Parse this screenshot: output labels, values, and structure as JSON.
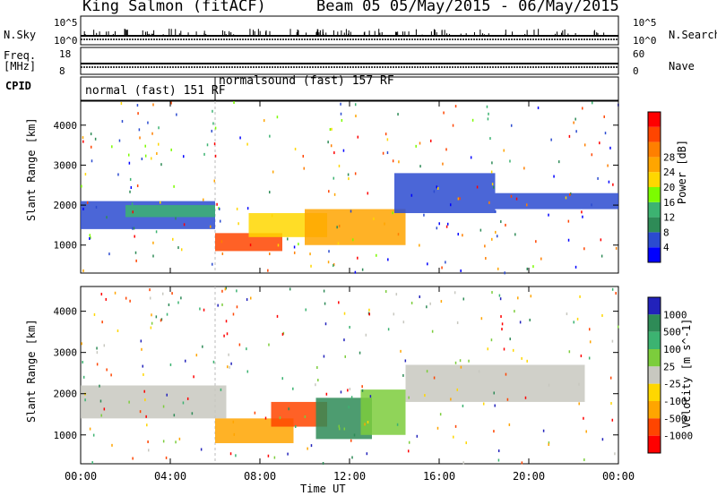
{
  "header": {
    "station": "King Salmon (fitACF)",
    "beam_dates": "Beam 05 05/May/2015 - 06/May/2015"
  },
  "strips": {
    "nsky_label": "N.Sky",
    "nsearch_label": "N.Search",
    "freq_label_1": "Freq.",
    "freq_label_2": "[MHz]",
    "nave_label": "Nave",
    "cpid_label": "CPID",
    "nsky_ticks": [
      "10^5",
      "10^0"
    ],
    "nsearch_ticks": [
      "10^5",
      "10^0"
    ],
    "freq_ticks": [
      "18",
      "8"
    ],
    "nave_ticks": [
      "60",
      "0"
    ],
    "cpid_segments": [
      {
        "label": "normal (fast) 151 RF",
        "start_hour": 0,
        "end_hour": 6
      },
      {
        "label": "normalsound (fast) 157 RF",
        "start_hour": 6,
        "end_hour": 24
      }
    ]
  },
  "chart_data": [
    {
      "type": "heatmap",
      "panel": "power",
      "ylabel": "Slant Range [km]",
      "y_ticks": [
        "1000",
        "2000",
        "3000",
        "4000"
      ],
      "ylim": [
        300,
        4600
      ],
      "xlim_hours": [
        0,
        24
      ],
      "colorbar_label": "Power [dB]",
      "colorbar_ticks": [
        "4",
        "8",
        "12",
        "16",
        "20",
        "24",
        "28"
      ],
      "colorbar_colors": [
        "#0000ff",
        "#2b4bd0",
        "#2e8b57",
        "#3cb371",
        "#7cfc00",
        "#ffd700",
        "#ffa500",
        "#ff7f00",
        "#ff4500",
        "#ff0000"
      ],
      "regions": [
        {
          "x0": 0.0,
          "x1": 6.0,
          "y0": 1400,
          "y1": 2100,
          "level": 0.15
        },
        {
          "x0": 2.0,
          "x1": 6.0,
          "y0": 1700,
          "y1": 2000,
          "level": 0.3
        },
        {
          "x0": 6.0,
          "x1": 9.0,
          "y0": 850,
          "y1": 1300,
          "level": 0.8
        },
        {
          "x0": 7.5,
          "x1": 11.0,
          "y0": 1200,
          "y1": 1800,
          "level": 0.55
        },
        {
          "x0": 10.0,
          "x1": 14.5,
          "y0": 1000,
          "y1": 1900,
          "level": 0.6
        },
        {
          "x0": 14.0,
          "x1": 18.5,
          "y0": 1800,
          "y1": 2800,
          "level": 0.15
        },
        {
          "x0": 18.5,
          "x1": 24.0,
          "y0": 1900,
          "y1": 2300,
          "level": 0.1
        }
      ]
    },
    {
      "type": "heatmap",
      "panel": "velocity",
      "ylabel": "Slant Range [km]",
      "xlabel": "Time UT",
      "x_ticks": [
        "00:00",
        "04:00",
        "08:00",
        "12:00",
        "16:00",
        "20:00",
        "00:00"
      ],
      "y_ticks": [
        "1000",
        "2000",
        "3000",
        "4000"
      ],
      "ylim": [
        300,
        4600
      ],
      "xlim_hours": [
        0,
        24
      ],
      "colorbar_label": "Velocity [m s^-1]",
      "colorbar_ticks": [
        "1000",
        "500",
        "100",
        "25",
        "-25",
        "-100",
        "-500",
        "-1000"
      ],
      "colorbar_colors": [
        "#2222bb",
        "#2e8b57",
        "#3cb371",
        "#7ccd3c",
        "#c8c8c0",
        "#ffd700",
        "#ffa500",
        "#ff4500",
        "#ff0000"
      ],
      "regions": [
        {
          "x0": 0.0,
          "x1": 6.5,
          "y0": 1400,
          "y1": 2200,
          "color": "#c8c8c0"
        },
        {
          "x0": 6.0,
          "x1": 9.5,
          "y0": 800,
          "y1": 1400,
          "color": "#ffa500"
        },
        {
          "x0": 8.5,
          "x1": 11.0,
          "y0": 1200,
          "y1": 1800,
          "color": "#ff4500"
        },
        {
          "x0": 10.5,
          "x1": 13.0,
          "y0": 900,
          "y1": 1900,
          "color": "#2e8b57"
        },
        {
          "x0": 12.5,
          "x1": 14.5,
          "y0": 1000,
          "y1": 2100,
          "color": "#7ccd3c"
        },
        {
          "x0": 14.5,
          "x1": 22.5,
          "y0": 1800,
          "y1": 2700,
          "color": "#c8c8c0"
        }
      ]
    }
  ]
}
